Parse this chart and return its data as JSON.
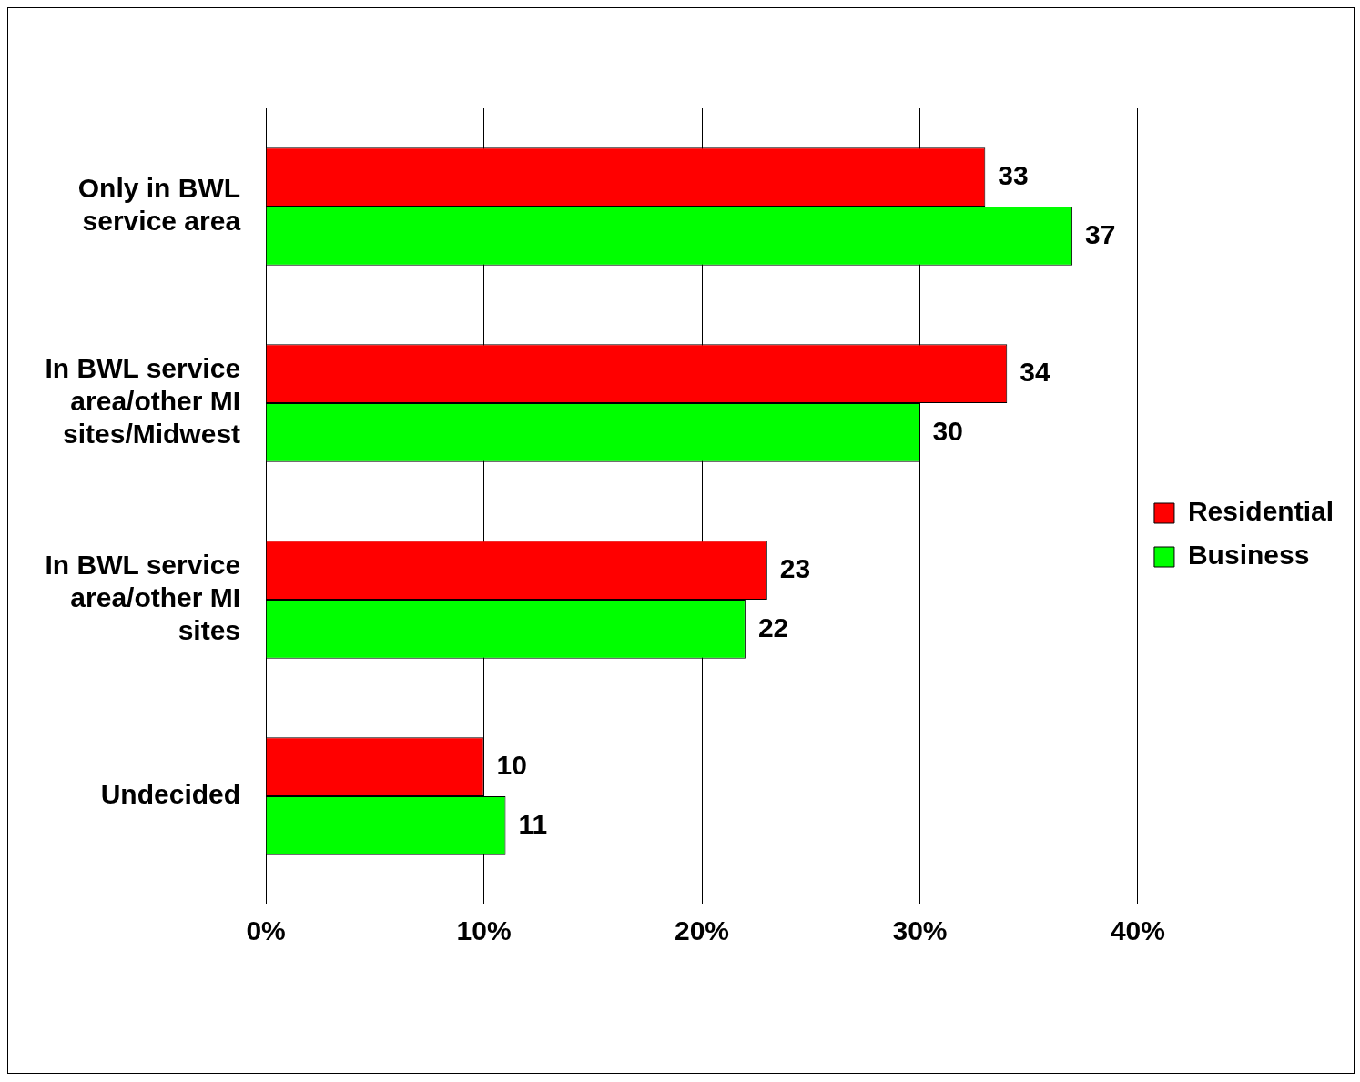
{
  "chart_data": {
    "type": "bar",
    "orientation": "horizontal",
    "categories": [
      "Only in BWL service area",
      "In BWL service area/other MI sites/Midwest",
      "In BWL service area/other MI sites",
      "Undecided"
    ],
    "series": [
      {
        "name": "Residential",
        "color": "#ff0000",
        "values": [
          33,
          34,
          23,
          10
        ]
      },
      {
        "name": "Business",
        "color": "#00ff00",
        "values": [
          37,
          30,
          22,
          11
        ]
      }
    ],
    "xlim": [
      0,
      40
    ],
    "xticks": [
      {
        "value": 0,
        "label": "0%"
      },
      {
        "value": 10,
        "label": "10%"
      },
      {
        "value": 20,
        "label": "20%"
      },
      {
        "value": 30,
        "label": "30%"
      },
      {
        "value": 40,
        "label": "40%"
      }
    ],
    "grid": "x",
    "legend": "right",
    "data_labels": true
  }
}
